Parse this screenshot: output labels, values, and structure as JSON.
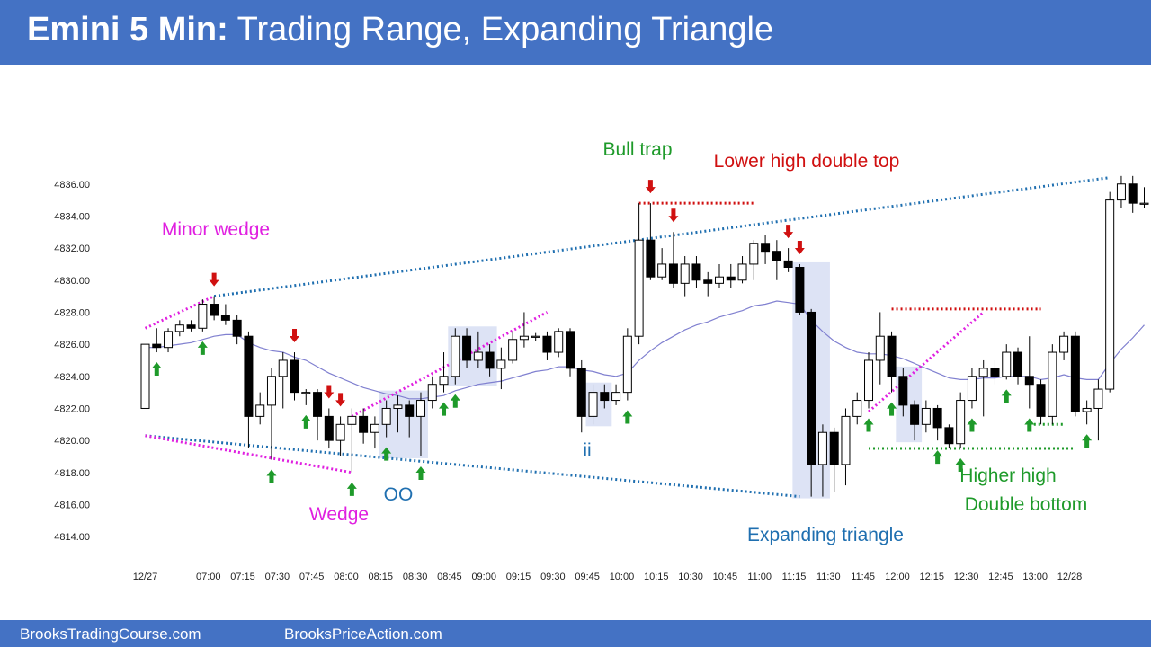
{
  "header": {
    "title_bold": "Emini 5 Min:",
    "title_rest": "Trading Range, Expanding Triangle"
  },
  "footer": {
    "left": "BrooksTradingCourse.com",
    "right": "BrooksPriceAction.com"
  },
  "colors": {
    "header_bg": "#4472c4",
    "bull": "#ffffff",
    "bear": "#000000",
    "ema": "#8080d0",
    "blue_line": "#1f6fb0",
    "magenta": "#e020e0",
    "red": "#d01010",
    "green": "#1e9a2a",
    "box": "#dde3f5"
  },
  "chart_data": {
    "type": "candlestick",
    "ylim": [
      4813,
      4837.5
    ],
    "y_ticks": [
      "4814.00",
      "4816.00",
      "4818.00",
      "4820.00",
      "4822.00",
      "4824.00",
      "4826.00",
      "4828.00",
      "4830.00",
      "4832.00",
      "4834.00",
      "4836.00"
    ],
    "x_ticks": [
      "12/27",
      "07:00",
      "07:15",
      "07:30",
      "07:45",
      "08:00",
      "08:15",
      "08:30",
      "08:45",
      "09:00",
      "09:15",
      "09:30",
      "09:45",
      "10:00",
      "10:15",
      "10:30",
      "10:45",
      "11:00",
      "11:15",
      "11:30",
      "11:45",
      "12:00",
      "12:15",
      "12:30",
      "12:45",
      "13:00",
      "12/28"
    ],
    "x_tick_bars": [
      0,
      5.5,
      8.5,
      11.5,
      14.5,
      17.5,
      20.5,
      23.5,
      26.5,
      29.5,
      32.5,
      35.5,
      38.5,
      41.5,
      44.5,
      47.5,
      50.5,
      53.5,
      56.5,
      59.5,
      62.5,
      65.5,
      68.5,
      71.5,
      74.5,
      77.5,
      80.5
    ],
    "candles": [
      [
        4822.0,
        4826.0,
        4826.0,
        4822.0
      ],
      [
        4826.0,
        4825.8,
        4827.0,
        4825.5
      ],
      [
        4825.8,
        4826.8,
        4827.0,
        4825.5
      ],
      [
        4826.8,
        4827.2,
        4827.5,
        4826.5
      ],
      [
        4827.2,
        4827.0,
        4827.5,
        4826.8
      ],
      [
        4827.0,
        4828.5,
        4828.8,
        4826.8
      ],
      [
        4828.5,
        4827.8,
        4829.0,
        4827.5
      ],
      [
        4827.8,
        4827.5,
        4828.5,
        4827.2
      ],
      [
        4827.5,
        4826.5,
        4827.8,
        4826.0
      ],
      [
        4826.5,
        4821.5,
        4826.8,
        4819.5
      ],
      [
        4821.5,
        4822.2,
        4823.0,
        4821.0
      ],
      [
        4822.2,
        4824.0,
        4824.5,
        4818.8
      ],
      [
        4824.0,
        4825.0,
        4825.5,
        4822.0
      ],
      [
        4825.0,
        4823.0,
        4825.5,
        4822.5
      ],
      [
        4823.0,
        4823.0,
        4823.2,
        4822.2
      ],
      [
        4823.0,
        4821.5,
        4823.2,
        4820.0
      ],
      [
        4821.5,
        4820.0,
        4822.0,
        4819.5
      ],
      [
        4820.0,
        4821.0,
        4821.5,
        4819.0
      ],
      [
        4821.0,
        4821.5,
        4822.0,
        4818.0
      ],
      [
        4821.5,
        4820.5,
        4822.0,
        4819.8
      ],
      [
        4820.5,
        4821.0,
        4821.5,
        4819.5
      ],
      [
        4821.0,
        4822.0,
        4822.5,
        4820.2
      ],
      [
        4822.0,
        4822.2,
        4822.8,
        4820.5
      ],
      [
        4822.2,
        4821.5,
        4822.5,
        4820.2
      ],
      [
        4821.5,
        4822.5,
        4823.0,
        4819.0
      ],
      [
        4822.5,
        4823.5,
        4824.0,
        4822.0
      ],
      [
        4823.5,
        4824.0,
        4825.5,
        4823.0
      ],
      [
        4824.0,
        4826.5,
        4827.0,
        4823.5
      ],
      [
        4826.5,
        4825.0,
        4827.0,
        4824.5
      ],
      [
        4825.0,
        4825.5,
        4826.8,
        4824.5
      ],
      [
        4825.5,
        4824.5,
        4826.0,
        4824.0
      ],
      [
        4824.5,
        4825.0,
        4825.8,
        4823.2
      ],
      [
        4825.0,
        4826.3,
        4826.8,
        4824.8
      ],
      [
        4826.3,
        4826.5,
        4828.0,
        4825.8
      ],
      [
        4826.5,
        4826.5,
        4826.7,
        4826.2
      ],
      [
        4826.5,
        4825.5,
        4826.8,
        4825.0
      ],
      [
        4825.5,
        4826.8,
        4827.0,
        4825.2
      ],
      [
        4826.8,
        4824.5,
        4827.0,
        4824.0
      ],
      [
        4824.5,
        4821.5,
        4825.0,
        4820.5
      ],
      [
        4821.5,
        4823.0,
        4823.5,
        4821.0
      ],
      [
        4823.0,
        4822.5,
        4823.5,
        4822.0
      ],
      [
        4822.5,
        4823.0,
        4823.5,
        4822.2
      ],
      [
        4823.0,
        4826.5,
        4827.0,
        4822.5
      ],
      [
        4826.5,
        4832.5,
        4834.8,
        4826.0
      ],
      [
        4832.5,
        4830.2,
        4834.8,
        4830.0
      ],
      [
        4830.2,
        4831.0,
        4832.0,
        4830.0
      ],
      [
        4831.0,
        4829.8,
        4833.0,
        4829.5
      ],
      [
        4829.8,
        4831.0,
        4831.5,
        4829.0
      ],
      [
        4831.0,
        4830.0,
        4831.5,
        4829.5
      ],
      [
        4830.0,
        4829.8,
        4830.5,
        4829.0
      ],
      [
        4829.8,
        4830.2,
        4831.0,
        4829.5
      ],
      [
        4830.2,
        4830.0,
        4831.0,
        4829.5
      ],
      [
        4830.0,
        4831.0,
        4831.5,
        4829.8
      ],
      [
        4831.0,
        4832.3,
        4832.5,
        4830.0
      ],
      [
        4832.3,
        4831.8,
        4832.8,
        4831.0
      ],
      [
        4831.8,
        4831.2,
        4832.5,
        4830.0
      ],
      [
        4831.2,
        4830.8,
        4832.0,
        4830.5
      ],
      [
        4830.8,
        4828.0,
        4831.0,
        4827.8
      ],
      [
        4828.0,
        4818.5,
        4828.2,
        4816.5
      ],
      [
        4818.5,
        4820.5,
        4821.0,
        4816.5
      ],
      [
        4820.5,
        4818.5,
        4820.8,
        4816.8
      ],
      [
        4818.5,
        4821.5,
        4822.0,
        4817.2
      ],
      [
        4821.5,
        4822.5,
        4823.0,
        4821.0
      ],
      [
        4822.5,
        4825.0,
        4825.5,
        4822.0
      ],
      [
        4825.0,
        4826.5,
        4828.0,
        4823.5
      ],
      [
        4826.5,
        4824.0,
        4826.8,
        4823.0
      ],
      [
        4824.0,
        4822.2,
        4824.5,
        4821.5
      ],
      [
        4822.2,
        4821.0,
        4822.5,
        4820.0
      ],
      [
        4821.0,
        4822.0,
        4822.5,
        4820.5
      ],
      [
        4822.0,
        4820.8,
        4822.2,
        4820.0
      ],
      [
        4820.8,
        4819.8,
        4821.0,
        4819.5
      ],
      [
        4819.8,
        4822.5,
        4823.0,
        4819.5
      ],
      [
        4822.5,
        4824.0,
        4824.5,
        4822.0
      ],
      [
        4824.0,
        4824.5,
        4825.0,
        4821.5
      ],
      [
        4824.5,
        4824.0,
        4825.0,
        4823.5
      ],
      [
        4824.0,
        4825.5,
        4826.0,
        4823.8
      ],
      [
        4825.5,
        4824.0,
        4825.8,
        4823.5
      ],
      [
        4824.0,
        4823.5,
        4826.5,
        4822.0
      ],
      [
        4823.5,
        4821.5,
        4823.8,
        4821.0
      ],
      [
        4821.5,
        4825.5,
        4826.0,
        4821.0
      ],
      [
        4825.5,
        4826.5,
        4826.8,
        4825.0
      ],
      [
        4826.5,
        4821.8,
        4826.8,
        4821.5
      ],
      [
        4821.8,
        4822.0,
        4822.5,
        4821.0
      ],
      [
        4822.0,
        4823.2,
        4823.8,
        4820.0
      ],
      [
        4823.2,
        4835.0,
        4835.5,
        4823.0
      ],
      [
        4835.0,
        4836.0,
        4836.5,
        4834.5
      ],
      [
        4836.0,
        4834.8,
        4836.5,
        4834.2
      ],
      [
        4834.8,
        4834.8,
        4835.8,
        4834.5
      ]
    ],
    "ema": [
      4825.8,
      4825.8,
      4825.9,
      4826.0,
      4826.1,
      4826.3,
      4826.5,
      4826.6,
      4826.6,
      4826.1,
      4825.8,
      4825.6,
      4825.5,
      4825.2,
      4825.0,
      4824.6,
      4824.2,
      4823.9,
      4823.6,
      4823.3,
      4823.1,
      4822.9,
      4822.8,
      4822.6,
      4822.6,
      4822.7,
      4822.8,
      4823.1,
      4823.3,
      4823.5,
      4823.6,
      4823.7,
      4823.9,
      4824.1,
      4824.3,
      4824.4,
      4824.6,
      4824.6,
      4824.4,
      4824.3,
      4824.1,
      4824.0,
      4824.2,
      4825.0,
      4825.6,
      4826.1,
      4826.5,
      4826.9,
      4827.2,
      4827.4,
      4827.7,
      4827.9,
      4828.1,
      4828.4,
      4828.5,
      4828.7,
      4828.6,
      4828.5,
      4827.5,
      4826.8,
      4826.2,
      4825.8,
      4825.5,
      4825.4,
      4825.4,
      4825.3,
      4825.1,
      4824.8,
      4824.5,
      4824.2,
      4823.9,
      4823.8,
      4823.8,
      4823.9,
      4823.9,
      4824.0,
      4824.0,
      4824.0,
      4823.8,
      4823.9,
      4824.1,
      4823.9,
      4823.8,
      4823.8,
      4824.8,
      4825.7,
      4826.4,
      4827.2
    ],
    "annotations": [
      {
        "text": "Minor wedge",
        "color": "magenta"
      },
      {
        "text": "Wedge",
        "color": "magenta"
      },
      {
        "text": "OO",
        "color": "blue"
      },
      {
        "text": "ii",
        "color": "blue"
      },
      {
        "text": "Bull trap",
        "color": "green"
      },
      {
        "text": "Lower high double top",
        "color": "red"
      },
      {
        "text": "Expanding triangle",
        "color": "blue"
      },
      {
        "text": "Higher high",
        "color": "green"
      },
      {
        "text": "Double bottom",
        "color": "green"
      }
    ],
    "down_arrow_bars": [
      6,
      13,
      16,
      17,
      44,
      46,
      56,
      57
    ],
    "up_arrow_bars": [
      1,
      5,
      11,
      14,
      18,
      21,
      24,
      26,
      27,
      42,
      63,
      65,
      69,
      71,
      72,
      75,
      77,
      82
    ],
    "blue_boxes": [
      [
        21,
        24
      ],
      [
        27,
        30
      ],
      [
        39,
        40
      ],
      [
        57,
        59
      ],
      [
        66,
        67
      ]
    ],
    "trend_lines": [
      {
        "kind": "dotted",
        "color": "blue_line",
        "from": [
          0,
          4820.3
        ],
        "to": [
          57,
          4816.5
        ]
      },
      {
        "kind": "dotted",
        "color": "blue_line",
        "from": [
          6,
          4829.0
        ],
        "to": [
          84,
          4836.4
        ]
      },
      {
        "kind": "dotted",
        "color": "magenta",
        "from": [
          0,
          4827.0
        ],
        "to": [
          6,
          4829.0
        ]
      },
      {
        "kind": "dotted",
        "color": "magenta",
        "from": [
          0,
          4820.3
        ],
        "to": [
          18,
          4818.0
        ]
      },
      {
        "kind": "dotted",
        "color": "magenta",
        "from": [
          18,
          4821.5
        ],
        "to": [
          35,
          4828.0
        ]
      },
      {
        "kind": "dotted",
        "color": "magenta",
        "from": [
          63,
          4821.8
        ],
        "to": [
          73,
          4828.0
        ]
      },
      {
        "kind": "dotted",
        "color": "red",
        "from": [
          43,
          4834.8
        ],
        "to": [
          53,
          4834.8
        ]
      },
      {
        "kind": "dotted",
        "color": "red",
        "from": [
          65,
          4828.2
        ],
        "to": [
          78,
          4828.2
        ]
      },
      {
        "kind": "dotted",
        "color": "green",
        "from": [
          63,
          4819.5
        ],
        "to": [
          81,
          4819.5
        ]
      },
      {
        "kind": "dotted",
        "color": "green",
        "from": [
          77,
          4821.0
        ],
        "to": [
          80,
          4821.0
        ]
      }
    ]
  }
}
